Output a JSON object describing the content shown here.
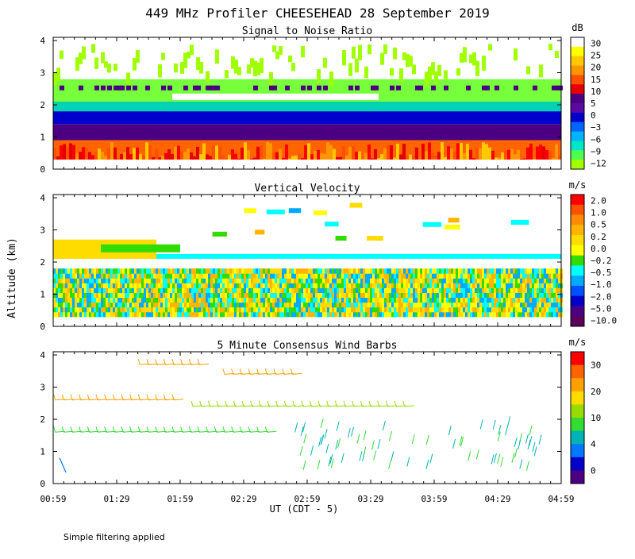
{
  "chart_data": {
    "type": "heatmap",
    "title": "449 MHz Profiler CHEESEHEAD 28 September 2019",
    "ylabel": "Altitude (km)",
    "xlabel": "UT  (CDT - 5)",
    "xticks": [
      "00:59",
      "01:29",
      "01:59",
      "02:29",
      "02:59",
      "03:29",
      "03:59",
      "04:29",
      "04:59"
    ],
    "yticks": [
      "0",
      "1",
      "2",
      "3",
      "4"
    ],
    "xlim_minutes": [
      59,
      299
    ],
    "ylim_km": [
      0,
      4.1
    ],
    "footnote": "Simple filtering applied",
    "panels": [
      {
        "id": "snr",
        "title": "Signal to Noise Ratio",
        "unit": "dB",
        "colorbar": {
          "labels": [
            "30",
            "25",
            "20",
            "15",
            "10",
            "5",
            "0",
            "−3",
            "−6",
            "−9",
            "−12"
          ],
          "colors": [
            "#ffffff",
            "#ffff00",
            "#ffc800",
            "#ff9600",
            "#ff5000",
            "#e60000",
            "#4b0082",
            "#5a0aa0",
            "#0000cd",
            "#0064ff",
            "#00b4ff",
            "#00e6c8",
            "#50ff50",
            "#a0ff00"
          ]
        },
        "layers": [
          {
            "z0": 0.3,
            "z1": 0.9,
            "level": "10 to 25 dB"
          },
          {
            "z0": 0.9,
            "z1": 1.4,
            "level": "0 to 5 dB"
          },
          {
            "z0": 1.4,
            "z1": 1.8,
            "level": "-3 to 0 dB"
          },
          {
            "z0": 1.8,
            "z1": 2.1,
            "level": "-9 to -6 dB"
          },
          {
            "z0": 2.1,
            "z1": 2.8,
            "level": "-12 to -9 dB"
          },
          {
            "z0": 2.8,
            "z1": 4.1,
            "level": "-12 dB"
          }
        ]
      },
      {
        "id": "vv",
        "title": "Vertical Velocity",
        "unit": "m/s",
        "colorbar": {
          "labels": [
            "2.0",
            "1.0",
            "0.5",
            "0.2",
            "0.0",
            "−0.2",
            "−0.5",
            "−1.0",
            "−2.0",
            "−5.0",
            "−10.0"
          ],
          "colors": [
            "#ff0000",
            "#ff5000",
            "#ff8c00",
            "#ffb400",
            "#ffdc00",
            "#ffff00",
            "#32dc00",
            "#00ffff",
            "#00aaff",
            "#0050ff",
            "#0000c8",
            "#4b0082",
            "#5a005a"
          ]
        },
        "layers": [
          {
            "z0": 0.3,
            "z1": 1.65,
            "level": "-0.5 to 0.5 m/s"
          },
          {
            "z0": 2.1,
            "z1": 2.7,
            "level": "-0.2 to 0.2 m/s"
          }
        ]
      },
      {
        "id": "wind",
        "title": "5 Minute Consensus Wind Barbs",
        "unit": "m/s",
        "colorbar": {
          "labels": [
            "30",
            "20",
            "10",
            "4",
            "0"
          ],
          "colors": [
            "#ff0000",
            "#ff6400",
            "#ffa000",
            "#ffdc00",
            "#96dc00",
            "#32dc32",
            "#00b4b4",
            "#0078ff",
            "#0000c8",
            "#4b0082"
          ]
        },
        "series": [
          {
            "name": "2.6 km layer",
            "altitude_km": 2.6,
            "speed_ms": 20,
            "t_start": 60,
            "t_end": 118
          },
          {
            "name": "2.4 km layer",
            "altitude_km": 2.4,
            "speed_ms": 15,
            "t_start": 125,
            "t_end": 225
          },
          {
            "name": "1.6 km layer",
            "altitude_km": 1.6,
            "speed_ms": 12,
            "t_start": 60,
            "t_end": 160
          },
          {
            "name": "3.7 km layer",
            "altitude_km": 3.7,
            "speed_ms": 20,
            "t_start": 100,
            "t_end": 130
          },
          {
            "name": "3.4 km layer",
            "altitude_km": 3.4,
            "speed_ms": 22,
            "t_start": 140,
            "t_end": 175
          }
        ]
      }
    ]
  }
}
